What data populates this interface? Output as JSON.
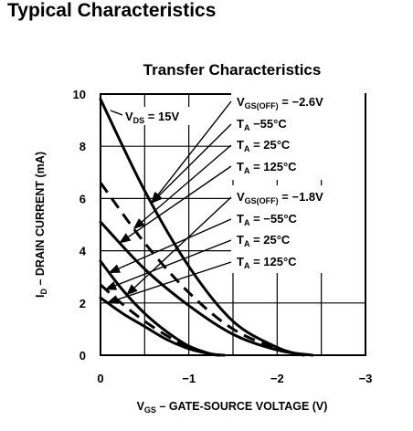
{
  "page": {
    "heading": "Typical Characteristics"
  },
  "chart_data": {
    "type": "line",
    "title": "Transfer Characteristics",
    "xlabel": {
      "a": "V",
      "sub": "GS",
      "b": " – GATE-SOURCE VOLTAGE (V)"
    },
    "ylabel": {
      "a": "I",
      "sub": "D",
      "b": " – DRAIN CURRENT (mA)"
    },
    "xlim": [
      0,
      -3
    ],
    "ylim": [
      0,
      10
    ],
    "x_ticks": [
      {
        "value": 0,
        "label": "0"
      },
      {
        "value": -1,
        "label": "−1"
      },
      {
        "value": -2,
        "label": "−2"
      },
      {
        "value": -3,
        "label": "−3"
      }
    ],
    "y_ticks": [
      {
        "value": 0,
        "label": "0"
      },
      {
        "value": 2,
        "label": "2"
      },
      {
        "value": 4,
        "label": "4"
      },
      {
        "value": 6,
        "label": "6"
      },
      {
        "value": 8,
        "label": "8"
      },
      {
        "value": 10,
        "label": "10"
      }
    ],
    "grid": true,
    "condition": {
      "a": "V",
      "sub": "DS",
      "b": " = 15V"
    },
    "groups": [
      {
        "vgs_off_label": {
          "a": "V",
          "sub": "GS(OFF)",
          "b": " = −2.6V"
        },
        "series": [
          {
            "ta_label": {
              "a": "T",
              "sub": "A",
              "b": " −55°C"
            },
            "style": "solid",
            "points": [
              [
                0,
                9.8
              ],
              [
                -0.5,
                6.3
              ],
              [
                -1.0,
                3.4
              ],
              [
                -1.5,
                1.3
              ],
              [
                -2.0,
                0.3
              ],
              [
                -2.3,
                0
              ]
            ]
          },
          {
            "ta_label": {
              "a": "T",
              "sub": "A",
              "b": " = 25°C"
            },
            "style": "dashed",
            "points": [
              [
                0,
                6.6
              ],
              [
                -0.5,
                4.3
              ],
              [
                -1.0,
                2.4
              ],
              [
                -1.5,
                1.0
              ],
              [
                -2.0,
                0.25
              ],
              [
                -2.3,
                0
              ]
            ]
          },
          {
            "ta_label": {
              "a": "T",
              "sub": "A",
              "b": " = 125°C"
            },
            "style": "solid",
            "points": [
              [
                0,
                5.1
              ],
              [
                -0.5,
                3.3
              ],
              [
                -1.0,
                1.9
              ],
              [
                -1.5,
                0.8
              ],
              [
                -2.0,
                0.2
              ],
              [
                -2.4,
                0
              ]
            ]
          }
        ]
      },
      {
        "vgs_off_label": {
          "a": "V",
          "sub": "GS(OFF)",
          "b": " = −1.8V"
        },
        "series": [
          {
            "ta_label": {
              "a": "T",
              "sub": "A",
              "b": " = −55°C"
            },
            "style": "solid",
            "points": [
              [
                0,
                3.6
              ],
              [
                -0.25,
                2.5
              ],
              [
                -0.5,
                1.6
              ],
              [
                -0.75,
                0.9
              ],
              [
                -1.0,
                0.35
              ],
              [
                -1.25,
                0.05
              ],
              [
                -1.35,
                0
              ]
            ]
          },
          {
            "ta_label": {
              "a": "T",
              "sub": "A",
              "b": " = 25°C"
            },
            "style": "dashed",
            "points": [
              [
                0,
                2.7
              ],
              [
                -0.25,
                1.95
              ],
              [
                -0.5,
                1.3
              ],
              [
                -0.75,
                0.75
              ],
              [
                -1.0,
                0.3
              ],
              [
                -1.25,
                0.05
              ],
              [
                -1.35,
                0
              ]
            ]
          },
          {
            "ta_label": {
              "a": "T",
              "sub": "A",
              "b": " = 125°C"
            },
            "style": "solid",
            "points": [
              [
                0,
                2.2
              ],
              [
                -0.25,
                1.6
              ],
              [
                -0.5,
                1.1
              ],
              [
                -0.75,
                0.6
              ],
              [
                -1.0,
                0.25
              ],
              [
                -1.25,
                0.05
              ],
              [
                -1.4,
                0
              ]
            ]
          }
        ]
      }
    ]
  }
}
